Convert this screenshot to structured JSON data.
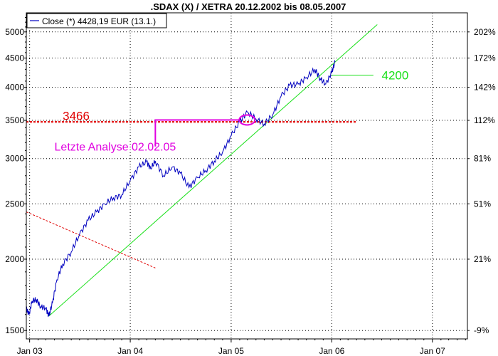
{
  "colors": {
    "price_line": "#0000c0",
    "trend_green": "#19e019",
    "resistance_red": "#e00000",
    "annotation_magenta": "#e000e0",
    "grid": "#000000",
    "frame": "#000000"
  },
  "chart_data": {
    "type": "line",
    "title": ".SDAX (X) / XETRA 20.12.2002 bis 08.05.2007",
    "xlabel": "",
    "ylabel": "",
    "y_scale": "log",
    "ylim": [
      1450,
      5400
    ],
    "xlim": [
      "2002-12-20",
      "2007-05-08"
    ],
    "x_ticks": [
      {
        "label": "Jan 03",
        "date": "2003-01-01"
      },
      {
        "label": "Jan 04",
        "date": "2004-01-01"
      },
      {
        "label": "Jan 05",
        "date": "2005-01-01"
      },
      {
        "label": "Jan 06",
        "date": "2006-01-01"
      },
      {
        "label": "Jan 07",
        "date": "2007-01-01"
      }
    ],
    "y_ticks_left": [
      1500,
      2000,
      2500,
      3000,
      3500,
      4000,
      4500,
      5000
    ],
    "y_ticks_right": [
      {
        "label": "-9%",
        "value": 1500
      },
      {
        "label": "21%",
        "value": 2000
      },
      {
        "label": "51%",
        "value": 2500
      },
      {
        "label": "81%",
        "value": 3000
      },
      {
        "label": "112%",
        "value": 3500
      },
      {
        "label": "142%",
        "value": 4000
      },
      {
        "label": "172%",
        "value": 4500
      },
      {
        "label": "202%",
        "value": 5000
      }
    ],
    "grid": true,
    "legend": {
      "position": "top-left",
      "label": "Close (*) 4428,19 EUR (13.1.)"
    },
    "series": [
      {
        "name": "Close (*) 4428,19 EUR (13.1.)",
        "points": [
          [
            "2002-12-20",
            1640
          ],
          [
            "2002-12-30",
            1600
          ],
          [
            "2003-01-10",
            1690
          ],
          [
            "2003-01-25",
            1700
          ],
          [
            "2003-02-10",
            1650
          ],
          [
            "2003-03-01",
            1640
          ],
          [
            "2003-03-12",
            1590
          ],
          [
            "2003-03-25",
            1680
          ],
          [
            "2003-04-10",
            1840
          ],
          [
            "2003-05-01",
            1960
          ],
          [
            "2003-06-01",
            2060
          ],
          [
            "2003-07-01",
            2210
          ],
          [
            "2003-08-01",
            2340
          ],
          [
            "2003-09-01",
            2420
          ],
          [
            "2003-10-01",
            2500
          ],
          [
            "2003-11-01",
            2560
          ],
          [
            "2003-12-01",
            2590
          ],
          [
            "2004-01-01",
            2750
          ],
          [
            "2004-02-01",
            2900
          ],
          [
            "2004-03-01",
            2960
          ],
          [
            "2004-03-15",
            2880
          ],
          [
            "2004-04-01",
            2970
          ],
          [
            "2004-05-01",
            2800
          ],
          [
            "2004-06-01",
            2900
          ],
          [
            "2004-07-01",
            2830
          ],
          [
            "2004-08-01",
            2670
          ],
          [
            "2004-09-01",
            2780
          ],
          [
            "2004-10-01",
            2860
          ],
          [
            "2004-11-01",
            2970
          ],
          [
            "2004-12-01",
            3080
          ],
          [
            "2005-01-01",
            3290
          ],
          [
            "2005-02-01",
            3480
          ],
          [
            "2005-03-01",
            3620
          ],
          [
            "2005-04-01",
            3520
          ],
          [
            "2005-05-01",
            3450
          ],
          [
            "2005-06-01",
            3580
          ],
          [
            "2005-07-01",
            3860
          ],
          [
            "2005-08-01",
            4030
          ],
          [
            "2005-09-01",
            4050
          ],
          [
            "2005-10-01",
            4160
          ],
          [
            "2005-11-01",
            4300
          ],
          [
            "2005-11-20",
            4140
          ],
          [
            "2005-12-10",
            4050
          ],
          [
            "2006-01-01",
            4250
          ],
          [
            "2006-01-13",
            4430
          ]
        ]
      }
    ],
    "lines": [
      {
        "kind": "support_trend",
        "color": "green",
        "from": [
          "2003-03-12",
          1590
        ],
        "to": [
          "2006-06-15",
          5150
        ]
      },
      {
        "kind": "horizontal",
        "color": "green",
        "from": [
          "2006-01-01",
          4200
        ],
        "to": [
          "2006-06-01",
          4200
        ]
      },
      {
        "kind": "horizontal_dashed",
        "color": "red",
        "from": [
          "2002-12-20",
          3466
        ],
        "to": [
          "2006-04-01",
          3466
        ]
      },
      {
        "kind": "declining_dashed",
        "color": "red",
        "from": [
          "2002-12-20",
          2420
        ],
        "to": [
          "2004-04-01",
          1930
        ]
      }
    ],
    "annotations": [
      {
        "text": "3466",
        "color": "red",
        "at": [
          "2003-05-01",
          3466
        ]
      },
      {
        "text": "4200",
        "color": "green",
        "at": [
          "2006-07-01",
          4200
        ]
      },
      {
        "text": "Letzte Analyse 02.02.05",
        "color": "magenta",
        "at": [
          "2003-04-01",
          3100
        ]
      }
    ]
  }
}
